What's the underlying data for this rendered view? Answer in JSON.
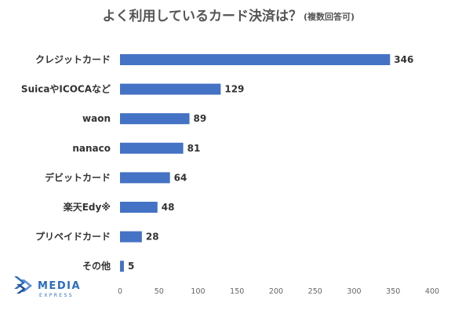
{
  "chart_data": {
    "type": "bar",
    "orientation": "horizontal",
    "title": "よく利用しているカード決済は？",
    "subtitle": "(複数回答可)",
    "categories": [
      "クレジットカード",
      "SuicaやICOCAなど",
      "waon",
      "nanaco",
      "デビットカード",
      "楽天Edy※",
      "プリペイドカード",
      "その他"
    ],
    "values": [
      346,
      129,
      89,
      81,
      64,
      48,
      28,
      5
    ],
    "xlim": [
      0,
      400
    ],
    "xticks": [
      0,
      50,
      100,
      150,
      200,
      250,
      300,
      350,
      400
    ],
    "grid": false,
    "bar_color": "#4472c4"
  },
  "logo": {
    "text": "MEDIA",
    "subtext": "EXPRESS",
    "icon": "media-express-logo-icon",
    "color": "#2c6dbf"
  }
}
